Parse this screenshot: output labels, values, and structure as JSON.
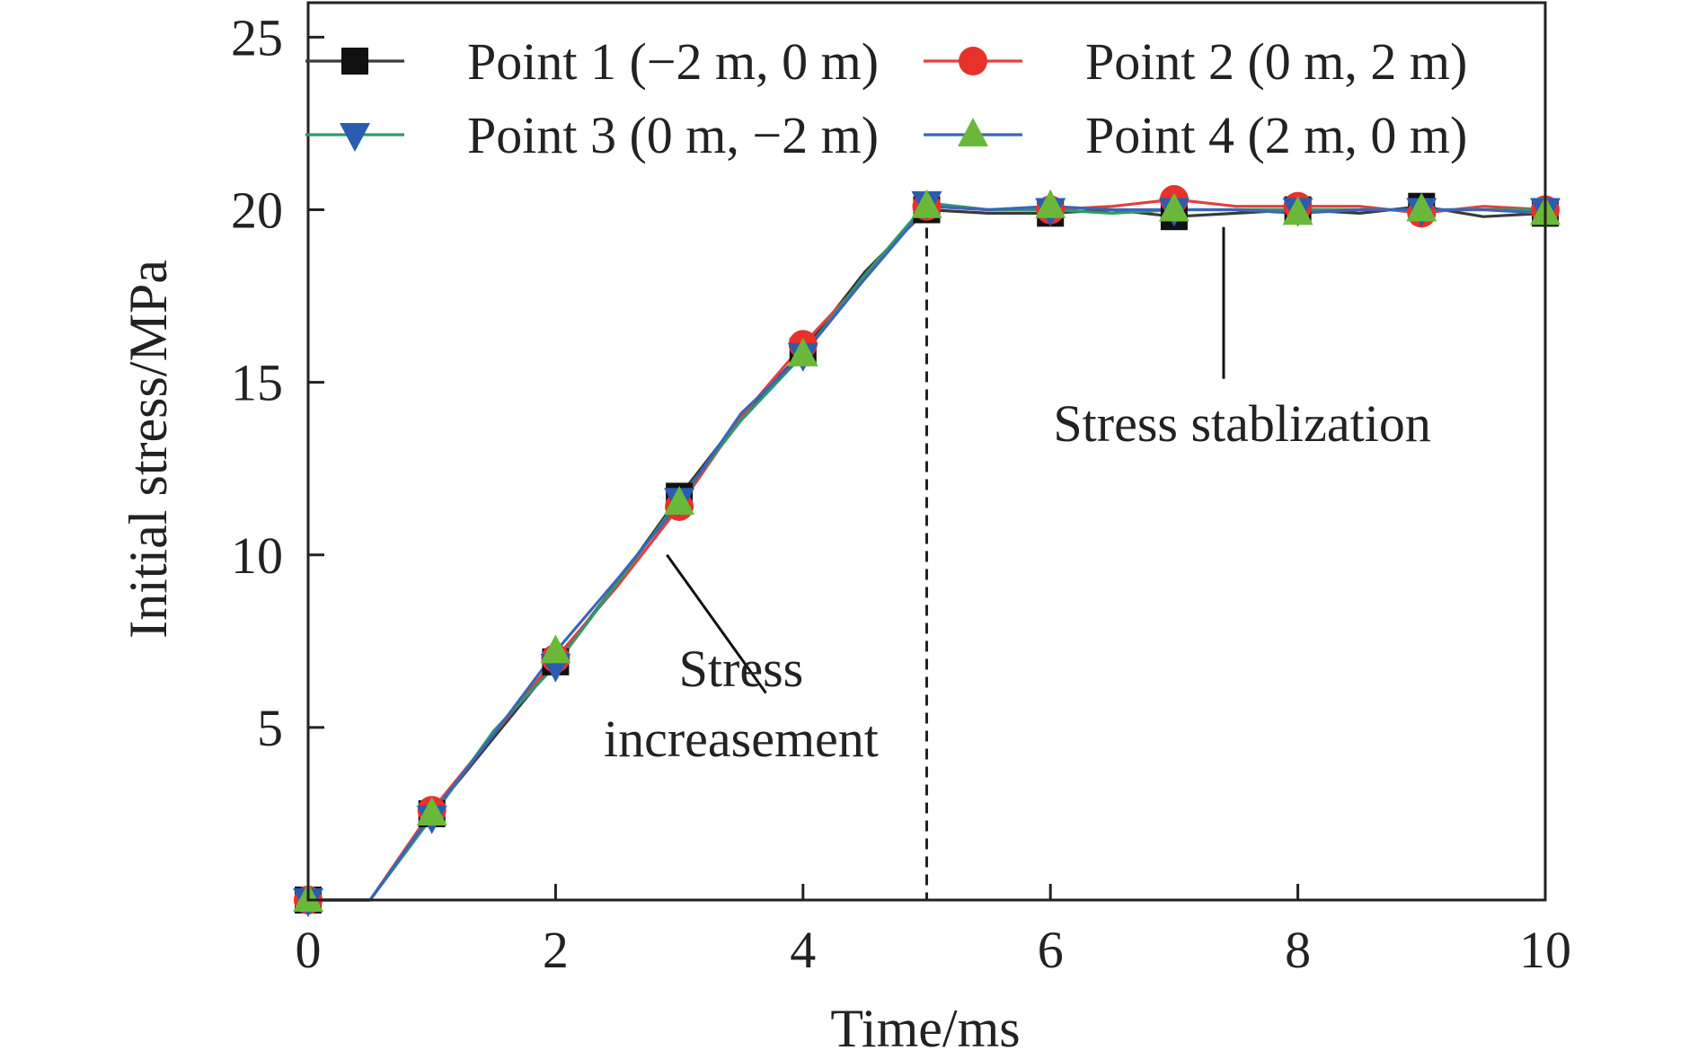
{
  "chart_data": {
    "type": "line",
    "title": "",
    "xlabel": "Time/ms",
    "ylabel": "Initial stress/MPa",
    "xlim": [
      0,
      10
    ],
    "ylim": [
      0,
      26
    ],
    "x_ticks": [
      0,
      2,
      4,
      6,
      8,
      10
    ],
    "y_ticks": [
      5,
      10,
      15,
      20,
      25
    ],
    "x_tick_labels": [
      "0",
      "2",
      "4",
      "6",
      "8",
      "10"
    ],
    "y_tick_labels": [
      "5",
      "10",
      "15",
      "20",
      "25"
    ],
    "grid": false,
    "legend_position": "top",
    "series": [
      {
        "name": "Point 1 (−2 m, 0 m)",
        "color": "#3a3a3a",
        "marker": "square",
        "marker_color": "#111111",
        "x": [
          0,
          0.5,
          1,
          1.5,
          2,
          2.5,
          3,
          3.5,
          4,
          4.5,
          5,
          5.5,
          6,
          6.5,
          7,
          7.5,
          8,
          8.5,
          9,
          9.5,
          10
        ],
        "y": [
          0,
          0,
          2.5,
          4.7,
          6.9,
          9.2,
          11.7,
          14.0,
          15.9,
          18.2,
          20.0,
          19.9,
          19.9,
          20.0,
          19.8,
          19.9,
          20.0,
          19.9,
          20.1,
          19.8,
          19.9
        ]
      },
      {
        "name": "Point 2 (0 m, 2 m)",
        "color": "#e0423d",
        "marker": "circle",
        "marker_color": "#e8312b",
        "x": [
          0,
          0.5,
          1,
          1.5,
          2,
          2.5,
          3,
          3.5,
          4,
          4.5,
          5,
          5.5,
          6,
          6.5,
          7,
          7.5,
          8,
          8.5,
          9,
          9.5,
          10
        ],
        "y": [
          0,
          0,
          2.6,
          4.8,
          7.0,
          9.1,
          11.4,
          14.0,
          16.1,
          18.0,
          20.1,
          20.0,
          20.0,
          20.1,
          20.3,
          20.1,
          20.1,
          20.1,
          19.9,
          20.1,
          20.0
        ]
      },
      {
        "name": "Point 3 (0 m, −2 m)",
        "color": "#2f9a6a",
        "marker": "triangle-down",
        "marker_color": "#2a5db0",
        "x": [
          0,
          0.5,
          1,
          1.5,
          2,
          2.5,
          3,
          3.5,
          4,
          4.5,
          5,
          5.5,
          6,
          6.5,
          7,
          7.5,
          8,
          8.5,
          9,
          9.5,
          10
        ],
        "y": [
          0,
          0,
          2.4,
          4.9,
          6.8,
          9.2,
          11.6,
          13.9,
          15.8,
          18.1,
          20.2,
          20.0,
          20.0,
          19.9,
          20.0,
          20.0,
          20.0,
          20.0,
          20.0,
          20.0,
          20.0
        ]
      },
      {
        "name": "Point 4 (2 m, 0 m)",
        "color": "#3a66b8",
        "marker": "triangle-up",
        "marker_color": "#6ab83a",
        "x": [
          0,
          0.5,
          1,
          1.5,
          2,
          2.5,
          3,
          3.5,
          4,
          4.5,
          5,
          5.5,
          6,
          6.5,
          7,
          7.5,
          8,
          8.5,
          9,
          9.5,
          10
        ],
        "y": [
          0,
          0,
          2.5,
          4.8,
          7.2,
          9.3,
          11.5,
          14.1,
          15.8,
          18.0,
          20.1,
          20.0,
          20.1,
          20.0,
          20.0,
          20.0,
          19.9,
          20.0,
          20.0,
          20.0,
          19.9
        ]
      }
    ],
    "marker_x": [
      0,
      1,
      2,
      3,
      4,
      5,
      6,
      7,
      8,
      9,
      10
    ],
    "vline_x": 5,
    "annotations": [
      {
        "text_lines": [
          "Stress",
          "increasement"
        ],
        "text_at": [
          3.5,
          6.2
        ],
        "line_from": [
          2.9,
          10.0
        ],
        "line_to": [
          3.7,
          6.0
        ]
      },
      {
        "text_lines": [
          "Stress stablization"
        ],
        "text_at": [
          7.55,
          13.3
        ],
        "line_from": [
          7.4,
          19.5
        ],
        "line_to": [
          7.4,
          15.1
        ]
      }
    ]
  }
}
